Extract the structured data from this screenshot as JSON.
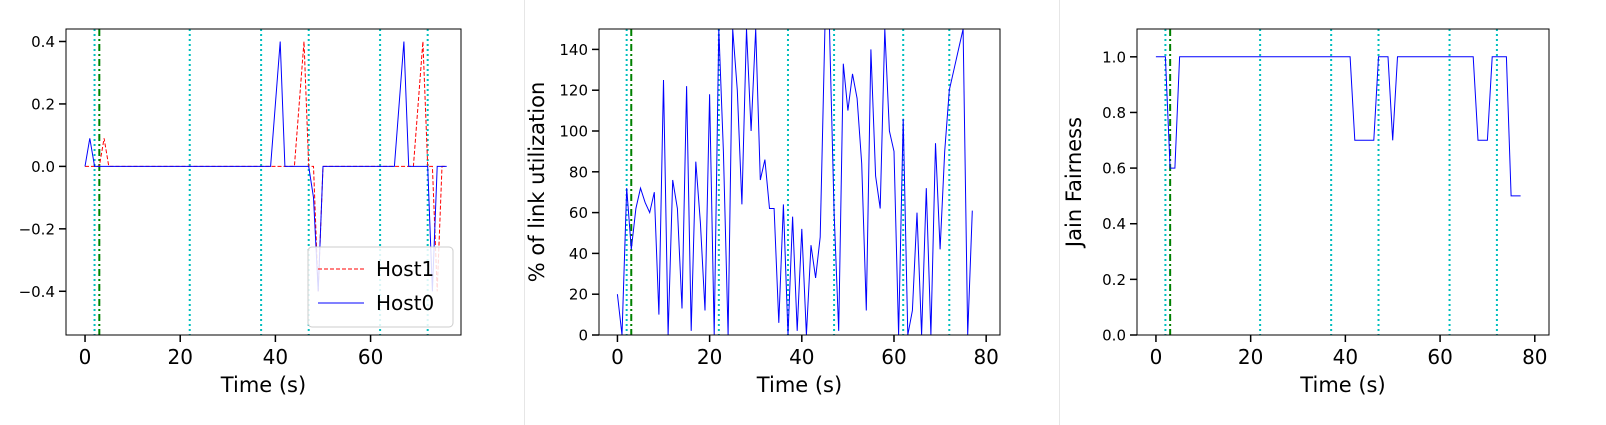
{
  "charts": [
    {
      "type": "line",
      "xlabel": "Time (s)",
      "ylabel": "",
      "xlim": [
        -4,
        79
      ],
      "ylim": [
        -0.54,
        0.44
      ],
      "xticks": [
        0,
        20,
        40,
        60
      ],
      "xtick_labels": [
        "0",
        "20",
        "40",
        "60"
      ],
      "yticks": [
        -0.4,
        -0.2,
        0.0,
        0.2,
        0.4
      ],
      "ytick_labels": [
        "−0.4",
        "−0.2",
        "0.0",
        "0.2",
        "0.4"
      ],
      "markers_dotted": [
        2,
        22,
        37,
        47,
        62,
        72
      ],
      "markers_dashdot": [
        3
      ],
      "legend": {
        "position": "lower-right",
        "entries": [
          "Host1",
          "Host0"
        ]
      },
      "series": [
        {
          "name": "Host1",
          "color": "#ff0000",
          "style": "dashed",
          "x": [
            0,
            1,
            2,
            3,
            4,
            5,
            10,
            20,
            30,
            40,
            44,
            46,
            47,
            48,
            49,
            50,
            51,
            55,
            60,
            65,
            69,
            71,
            72,
            73,
            74,
            75,
            76
          ],
          "y": [
            0,
            0,
            0,
            0,
            0.09,
            0,
            0,
            0,
            0,
            0,
            0,
            0.4,
            0,
            0,
            -0.4,
            0,
            0,
            0,
            0,
            0,
            0,
            0.4,
            0,
            0,
            -0.4,
            0,
            0
          ]
        },
        {
          "name": "Host0",
          "color": "#0000ff",
          "style": "solid",
          "x": [
            0,
            1,
            2,
            3,
            4,
            10,
            20,
            30,
            39,
            41,
            42,
            47,
            48,
            49,
            50,
            51,
            55,
            60,
            65,
            67,
            68,
            71,
            72,
            73,
            74,
            75,
            76
          ],
          "y": [
            0,
            0.09,
            0,
            0,
            0,
            0,
            0,
            0,
            0,
            0.4,
            0,
            0,
            -0.1,
            -0.4,
            0,
            0,
            0,
            0,
            0,
            0.4,
            0,
            0,
            0,
            -0.4,
            0,
            0,
            0
          ]
        }
      ]
    },
    {
      "type": "line",
      "xlabel": "Time (s)",
      "ylabel": "% of link utilization",
      "xlim": [
        -4,
        83
      ],
      "ylim": [
        0,
        150
      ],
      "xticks": [
        0,
        20,
        40,
        60,
        80
      ],
      "xtick_labels": [
        "0",
        "20",
        "40",
        "60",
        "80"
      ],
      "yticks": [
        0,
        20,
        40,
        60,
        80,
        100,
        120,
        140
      ],
      "ytick_labels": [
        "0",
        "20",
        "40",
        "60",
        "80",
        "100",
        "120",
        "140"
      ],
      "markers_dotted": [
        2,
        22,
        37,
        47,
        62,
        72
      ],
      "markers_dashdot": [
        3
      ],
      "series": [
        {
          "name": "",
          "color": "#0000ff",
          "style": "solid",
          "x": [
            0,
            1,
            2,
            3,
            4,
            5,
            6,
            7,
            8,
            9,
            10,
            11,
            12,
            13,
            14,
            15,
            16,
            17,
            18,
            19,
            20,
            21,
            22,
            23,
            24,
            25,
            26,
            27,
            28,
            29,
            30,
            31,
            32,
            33,
            34,
            35,
            36,
            37,
            38,
            39,
            40,
            41,
            42,
            43,
            44,
            45,
            46,
            47,
            48,
            49,
            50,
            51,
            52,
            53,
            54,
            55,
            56,
            57,
            58,
            59,
            60,
            61,
            62,
            63,
            64,
            65,
            66,
            67,
            68,
            69,
            70,
            71,
            72,
            73,
            74,
            75,
            76,
            77
          ],
          "y": [
            20,
            0,
            72,
            42,
            62,
            72,
            65,
            60,
            70,
            10,
            125,
            0,
            76,
            62,
            13,
            122,
            2,
            85,
            55,
            12,
            118,
            0,
            150,
            90,
            0,
            150,
            120,
            64,
            150,
            100,
            150,
            76,
            86,
            62,
            62,
            6,
            64,
            0,
            58,
            2,
            52,
            0,
            44,
            28,
            48,
            150,
            150,
            60,
            2,
            133,
            110,
            128,
            116,
            84,
            12,
            140,
            78,
            62,
            150,
            100,
            90,
            0,
            106,
            0,
            12,
            60,
            0,
            72,
            0,
            94,
            42,
            90,
            120,
            130,
            140,
            150,
            0,
            61
          ]
        }
      ]
    },
    {
      "type": "line",
      "xlabel": "Time (s)",
      "ylabel": "Jain Fairness",
      "xlim": [
        -4,
        83
      ],
      "ylim": [
        0,
        1.1
      ],
      "xticks": [
        0,
        20,
        40,
        60,
        80
      ],
      "xtick_labels": [
        "0",
        "20",
        "40",
        "60",
        "80"
      ],
      "yticks": [
        0,
        0.2,
        0.4,
        0.6,
        0.8,
        1.0
      ],
      "ytick_labels": [
        "0.0",
        "0.2",
        "0.4",
        "0.6",
        "0.8",
        "1.0"
      ],
      "markers_dotted": [
        2,
        22,
        37,
        47,
        62,
        72
      ],
      "markers_dashdot": [
        3
      ],
      "series": [
        {
          "name": "",
          "color": "#0000ff",
          "style": "solid",
          "x": [
            0,
            1,
            2,
            3,
            4,
            5,
            10,
            20,
            30,
            40,
            41,
            42,
            45,
            46,
            47,
            48,
            49,
            50,
            51,
            55,
            60,
            65,
            66,
            67,
            68,
            69,
            70,
            71,
            74,
            75,
            76,
            77
          ],
          "y": [
            1,
            1,
            1,
            0.6,
            0.6,
            1,
            1,
            1,
            1,
            1,
            1,
            0.7,
            0.7,
            0.7,
            1,
            1,
            1,
            0.7,
            1,
            1,
            1,
            1,
            1,
            1,
            0.7,
            0.7,
            0.7,
            1,
            1,
            0.5,
            0.5,
            0.5
          ]
        }
      ]
    }
  ]
}
